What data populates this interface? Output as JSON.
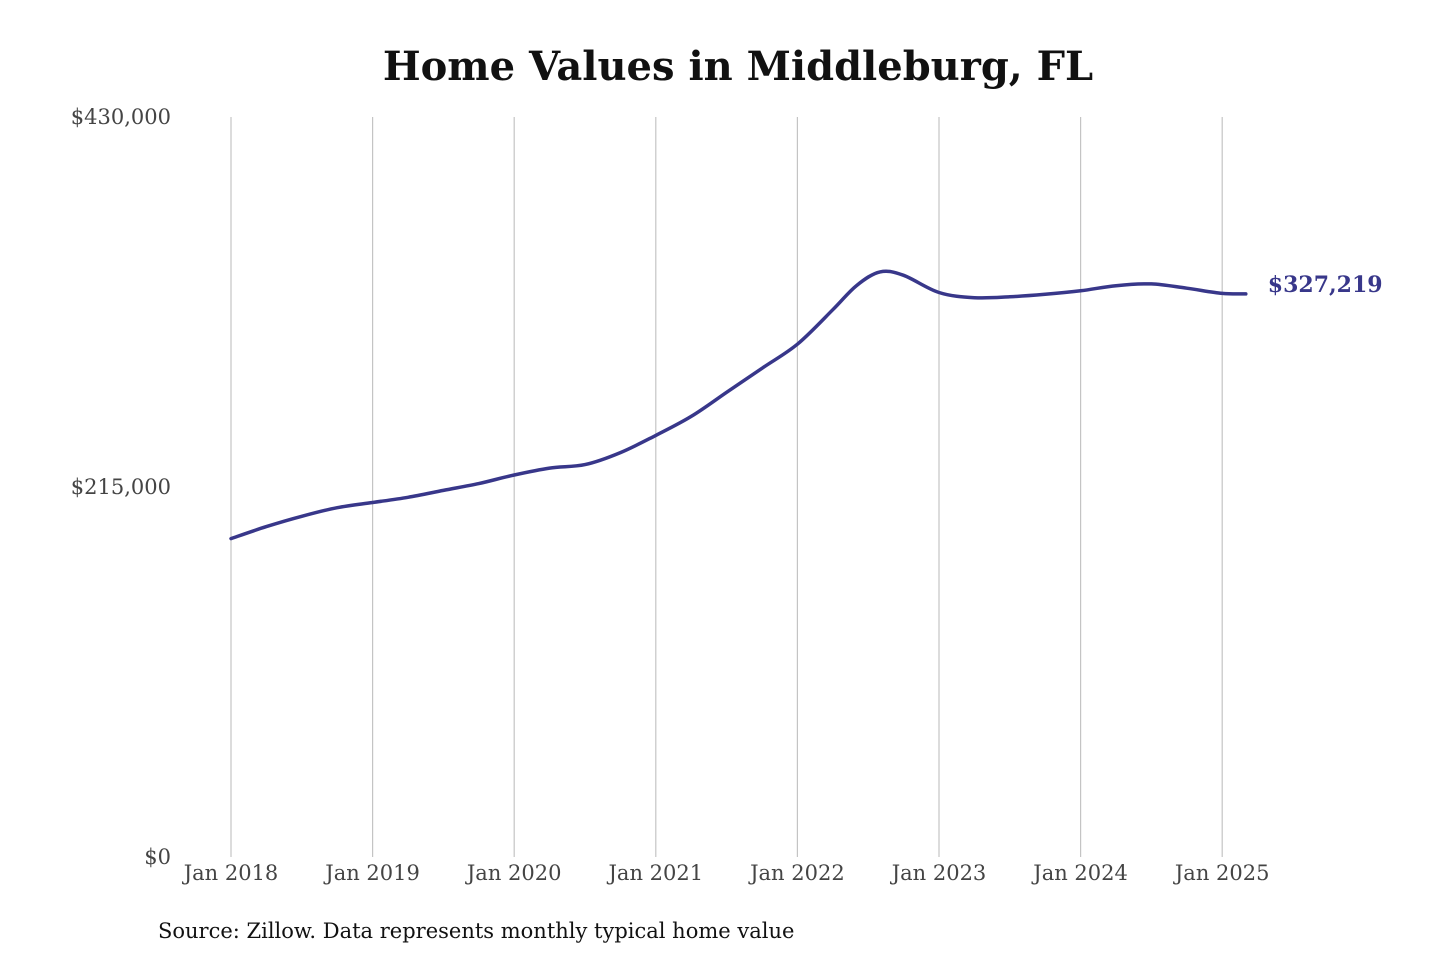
{
  "chart_data": {
    "type": "line",
    "title": "Home Values in Middleburg, FL",
    "xlabel": "",
    "ylabel": "",
    "ylim": [
      0,
      430000
    ],
    "xlim": [
      "2018-01",
      "2025-04"
    ],
    "y_ticks": [
      {
        "value": 0,
        "label": "$0"
      },
      {
        "value": 215000,
        "label": "$215,000"
      },
      {
        "value": 430000,
        "label": "$430,000"
      }
    ],
    "x_ticks": [
      {
        "value": "2018-01",
        "label": "Jan 2018"
      },
      {
        "value": "2019-01",
        "label": "Jan 2019"
      },
      {
        "value": "2020-01",
        "label": "Jan 2020"
      },
      {
        "value": "2021-01",
        "label": "Jan 2021"
      },
      {
        "value": "2022-01",
        "label": "Jan 2022"
      },
      {
        "value": "2023-01",
        "label": "Jan 2023"
      },
      {
        "value": "2024-01",
        "label": "Jan 2024"
      },
      {
        "value": "2025-01",
        "label": "Jan 2025"
      }
    ],
    "grid": "vertical",
    "legend": "none",
    "series": [
      {
        "color": "#38378a",
        "x": [
          "2018-01",
          "2018-04",
          "2018-07",
          "2018-10",
          "2019-01",
          "2019-04",
          "2019-07",
          "2019-10",
          "2020-01",
          "2020-04",
          "2020-07",
          "2020-10",
          "2021-01",
          "2021-04",
          "2021-07",
          "2021-10",
          "2022-01",
          "2022-04",
          "2022-06",
          "2022-08",
          "2022-10",
          "2023-01",
          "2023-04",
          "2023-07",
          "2023-10",
          "2024-01",
          "2024-04",
          "2024-07",
          "2024-10",
          "2025-01",
          "2025-03"
        ],
        "values": [
          185000,
          192000,
          198000,
          203000,
          206000,
          209000,
          213000,
          217000,
          222000,
          226000,
          228000,
          235000,
          245000,
          256000,
          270000,
          284000,
          298000,
          318000,
          332000,
          340000,
          338000,
          328000,
          325000,
          325500,
          327000,
          329000,
          332000,
          333000,
          330500,
          327500,
          327219
        ]
      }
    ],
    "end_label": "$327,219",
    "source": "Source: Zillow. Data represents monthly typical home value"
  }
}
